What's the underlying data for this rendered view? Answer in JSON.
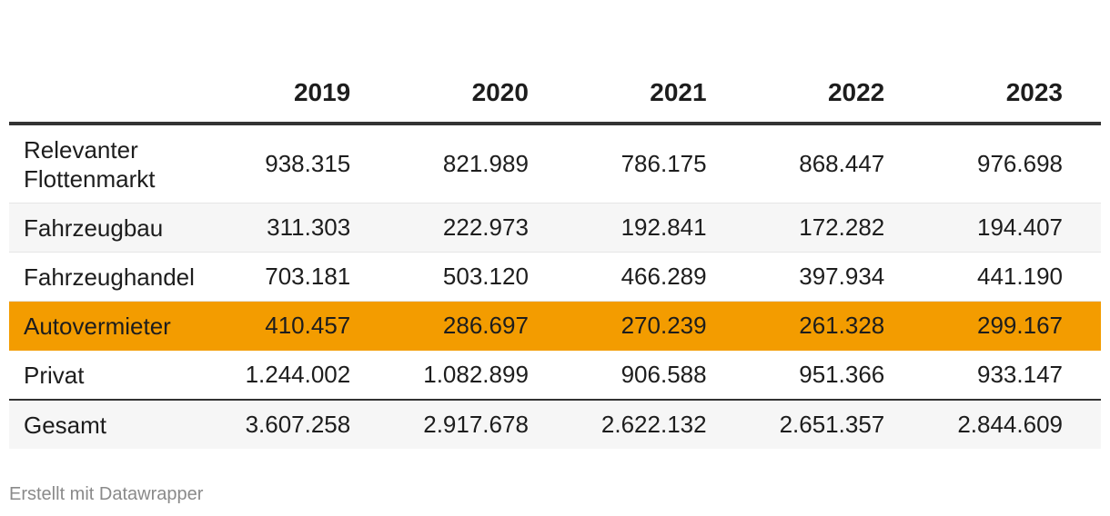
{
  "chart_data": {
    "type": "table",
    "columns": [
      "2019",
      "2020",
      "2021",
      "2022",
      "2023"
    ],
    "rows": [
      {
        "label": "Relevanter Flottenmarkt",
        "values": [
          "938.315",
          "821.989",
          "786.175",
          "868.447",
          "976.698"
        ]
      },
      {
        "label": "Fahrzeugbau",
        "values": [
          "311.303",
          "222.973",
          "192.841",
          "172.282",
          "194.407"
        ]
      },
      {
        "label": "Fahrzeughandel",
        "values": [
          "703.181",
          "503.120",
          "466.289",
          "397.934",
          "441.190"
        ]
      },
      {
        "label": "Autovermieter",
        "values": [
          "410.457",
          "286.697",
          "270.239",
          "261.328",
          "299.167"
        ],
        "highlighted": true
      },
      {
        "label": "Privat",
        "values": [
          "1.244.002",
          "1.082.899",
          "906.588",
          "951.366",
          "933.147"
        ]
      },
      {
        "label": "Gesamt",
        "values": [
          "3.607.258",
          "2.917.678",
          "2.622.132",
          "2.651.357",
          "2.844.609"
        ]
      }
    ],
    "highlight_color": "#f39c00"
  },
  "footer": {
    "credit": "Erstellt mit Datawrapper"
  }
}
